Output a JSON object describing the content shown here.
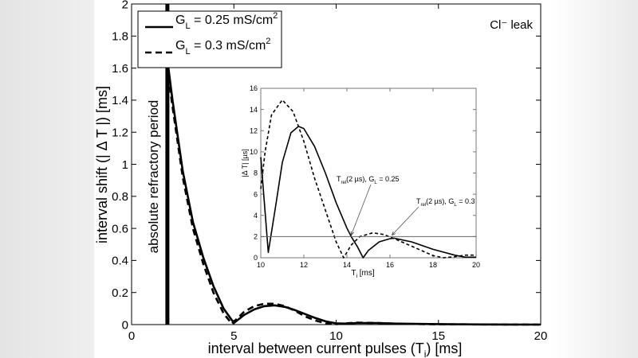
{
  "chart_data": [
    {
      "type": "line",
      "xlabel": "interval between current pulses (T",
      "xlabel_sub": "i",
      "xlabel_end": ") [ms]",
      "ylabel": "interval shift (| Δ T |) [ms]",
      "xlim": [
        0,
        20
      ],
      "ylim": [
        0,
        2
      ],
      "xticks": [
        0,
        5,
        10,
        15,
        20
      ],
      "yticks": [
        0,
        0.2,
        0.4,
        0.6,
        0.8,
        1,
        1.2,
        1.4,
        1.6,
        1.8,
        2
      ],
      "grid": false,
      "legend_placement": "top-left",
      "annotation_corner": "Cl⁻ leak",
      "annotation_vertical": "absolute refractory period",
      "refractory_x": 1.75,
      "series": [
        {
          "name": "G_L = 0.25 mS/cm²",
          "legend_main": "G",
          "legend_sub": "L",
          "legend_rest": " = 0.25 mS/cm",
          "legend_sup": "2",
          "style": "solid",
          "x": [
            1.8,
            2,
            2.5,
            3,
            3.5,
            4,
            4.5,
            5,
            5.5,
            6,
            6.5,
            7,
            7.5,
            8,
            8.5,
            9,
            9.5,
            10,
            10.5,
            11,
            12,
            13,
            15,
            17,
            20
          ],
          "y": [
            1.6,
            1.4,
            0.96,
            0.64,
            0.42,
            0.24,
            0.1,
            0.01,
            0.06,
            0.095,
            0.115,
            0.12,
            0.11,
            0.09,
            0.065,
            0.04,
            0.02,
            0.008,
            0.006,
            0.01,
            0.01,
            0.006,
            0.003,
            0.001,
            0
          ]
        },
        {
          "name": "G_L = 0.3 mS/cm²",
          "legend_main": "G",
          "legend_sub": "L",
          "legend_rest": " = 0.3 mS/cm",
          "legend_sup": "2",
          "style": "dashed",
          "x": [
            1.8,
            2,
            2.5,
            3,
            3.5,
            4,
            4.5,
            4.9,
            5.5,
            6,
            6.5,
            7,
            7.5,
            8,
            8.5,
            9,
            9.5,
            10,
            10.5,
            11,
            12,
            13,
            15,
            17,
            20
          ],
          "y": [
            1.55,
            1.36,
            0.92,
            0.6,
            0.38,
            0.2,
            0.07,
            0.005,
            0.08,
            0.115,
            0.13,
            0.13,
            0.115,
            0.085,
            0.05,
            0.025,
            0.008,
            0.003,
            0.008,
            0.012,
            0.01,
            0.005,
            0.002,
            0.001,
            0
          ]
        }
      ]
    },
    {
      "type": "line",
      "xlabel": "T",
      "xlabel_sub": "i",
      "xlabel_end": " [ms]",
      "ylabel": "|Δ T| [µs]",
      "xlim": [
        10,
        20
      ],
      "ylim": [
        0,
        16
      ],
      "xticks": [
        10,
        12,
        14,
        16,
        18,
        20
      ],
      "yticks": [
        0,
        2,
        4,
        6,
        8,
        10,
        12,
        14,
        16
      ],
      "grid": false,
      "threshold_y": 2,
      "annotations": [
        {
          "main": "T",
          "sub": "rel",
          "mid": "(2 µs), G",
          "sub2": "L",
          "rest": " = 0.25",
          "target": [
            14.2,
            2
          ]
        },
        {
          "main": "T",
          "sub": "rel",
          "mid": "(2 µs), G",
          "sub2": "L",
          "rest": " = 0.3",
          "target": [
            16.1,
            2
          ]
        }
      ],
      "series": [
        {
          "style": "solid",
          "x": [
            10,
            10.35,
            10.7,
            11,
            11.4,
            11.75,
            12,
            12.5,
            13,
            13.5,
            14,
            14.2,
            14.5,
            14.75,
            15,
            15.5,
            16,
            16.2,
            17,
            18,
            19,
            19.5,
            20
          ],
          "y": [
            9.5,
            0.5,
            5,
            9,
            11.8,
            12.4,
            12.2,
            10.5,
            8,
            5.2,
            2.8,
            2,
            1,
            0,
            0.7,
            1.5,
            1.8,
            1.85,
            1.5,
            0.8,
            0.25,
            0.05,
            0.05
          ]
        },
        {
          "style": "dashed",
          "x": [
            10,
            10.2,
            10.5,
            11,
            11.5,
            12,
            12.5,
            13,
            13.5,
            13.85,
            14.2,
            14.6,
            15.2,
            15.7,
            16.2,
            17,
            18,
            18.5,
            19,
            19.5,
            20
          ],
          "y": [
            6.5,
            10,
            13.5,
            14.9,
            13.8,
            11,
            7.5,
            4.5,
            1.5,
            0,
            1.2,
            2,
            2.35,
            2.2,
            1.8,
            1.1,
            0.2,
            0,
            0.1,
            0.25,
            0.25
          ]
        }
      ]
    }
  ]
}
